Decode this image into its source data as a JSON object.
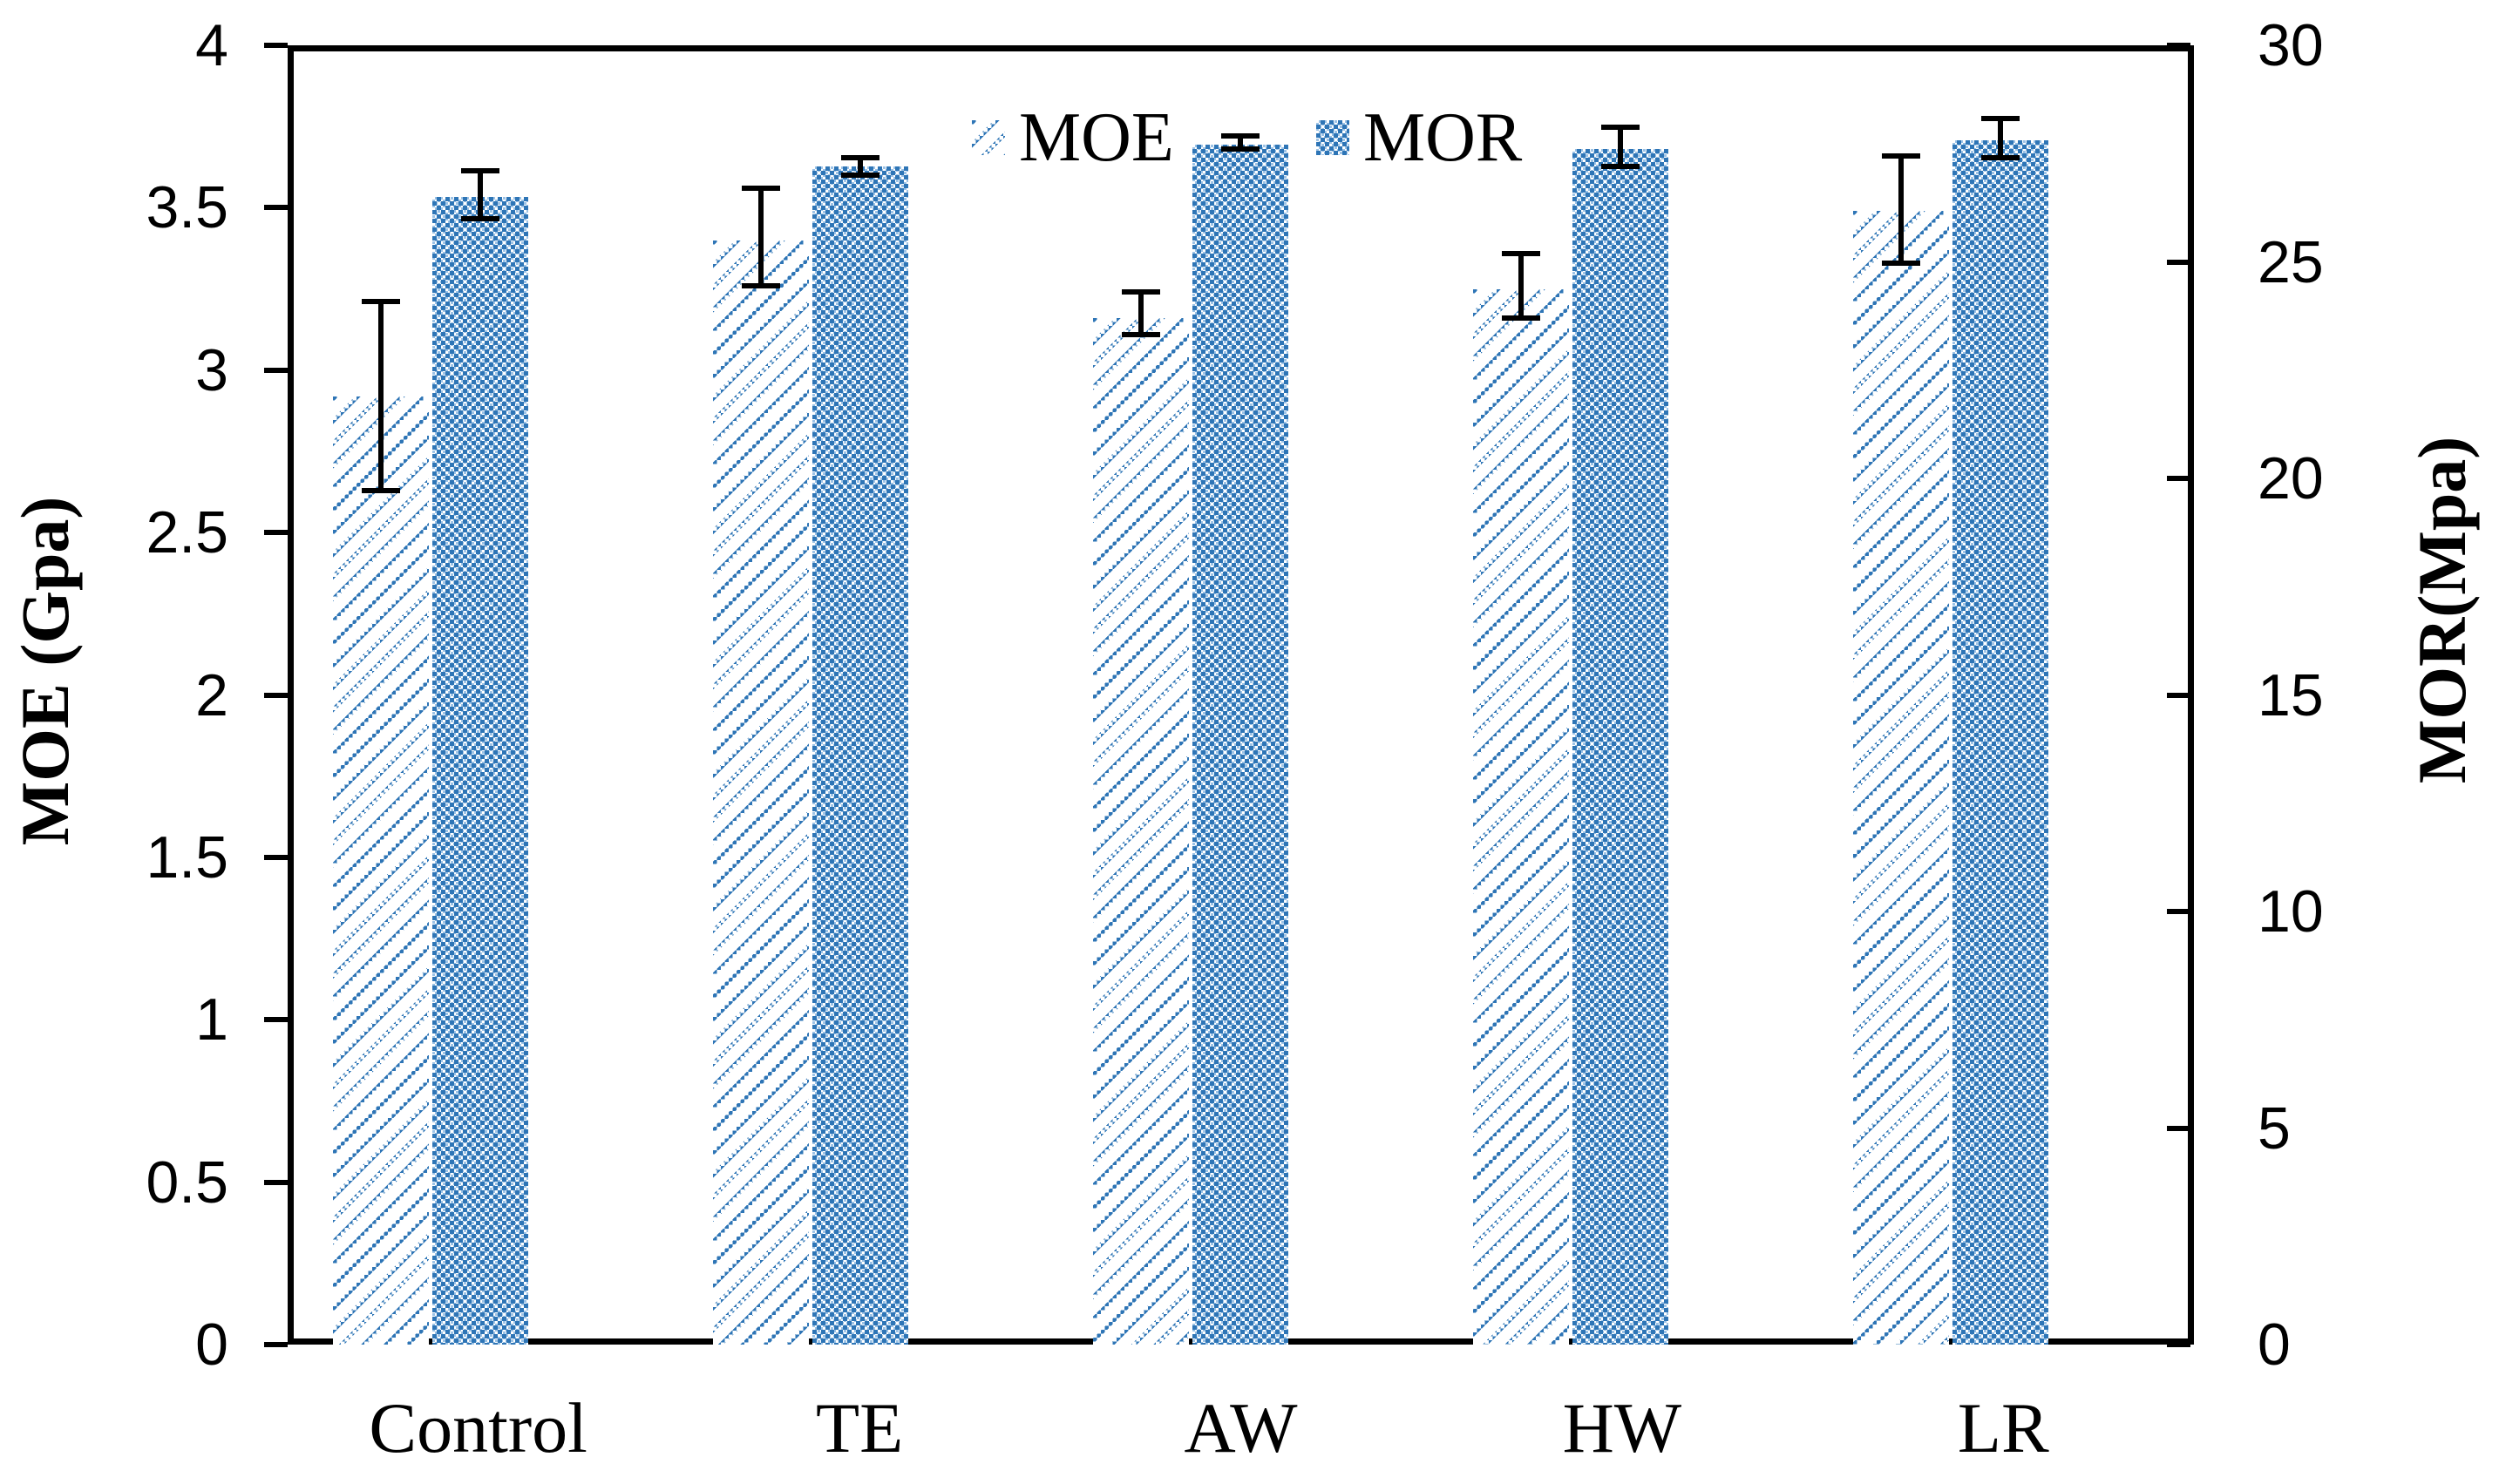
{
  "figure": {
    "description": "Grouped bar chart with error bars comparing MOE and MOR across treatments"
  },
  "legend": {
    "items": [
      {
        "label": "MOE",
        "pattern": "diagonal-hatch"
      },
      {
        "label": "MOR",
        "pattern": "checker"
      }
    ]
  },
  "left_axis": {
    "title": "MOE (Gpa)",
    "ticks": [
      "0",
      "0.5",
      "1",
      "1.5",
      "2",
      "2.5",
      "3",
      "3.5",
      "4"
    ],
    "min": 0,
    "max": 4
  },
  "right_axis": {
    "title": "MOR(Mpa)",
    "ticks": [
      "0",
      "5",
      "10",
      "15",
      "20",
      "25",
      "30"
    ],
    "min": 0,
    "max": 30
  },
  "x_axis": {
    "categories": [
      "Control",
      "TE",
      "AW",
      "HW",
      "LR"
    ]
  },
  "colors": {
    "bar_blue": "#2E75B6",
    "bar_blue_light": "#9DC3E6",
    "axis_black": "#000000"
  },
  "chart_data": {
    "type": "bar",
    "title": "",
    "categories": [
      "Control",
      "TE",
      "AW",
      "HW",
      "LR"
    ],
    "series": [
      {
        "name": "MOE",
        "axis": "left",
        "unit": "Gpa",
        "values": [
          2.92,
          3.4,
          3.16,
          3.25,
          3.49
        ],
        "error_low": [
          2.63,
          3.26,
          3.11,
          3.16,
          3.33
        ],
        "error_high": [
          3.21,
          3.56,
          3.24,
          3.36,
          3.66
        ]
      },
      {
        "name": "MOR",
        "axis": "right",
        "unit": "Mpa",
        "values": [
          26.5,
          27.2,
          27.7,
          27.6,
          27.8
        ],
        "error_low": [
          26.0,
          27.0,
          27.6,
          27.2,
          27.4
        ],
        "error_high": [
          27.1,
          27.4,
          27.9,
          28.1,
          28.3
        ]
      }
    ],
    "xlabel": "",
    "ylabel_left": "MOE (Gpa)",
    "ylabel_right": "MOR(Mpa)",
    "ylim_left": [
      0,
      4
    ],
    "ylim_right": [
      0,
      30
    ],
    "grid": false,
    "legend_position": "top-center",
    "error_bars": true
  }
}
